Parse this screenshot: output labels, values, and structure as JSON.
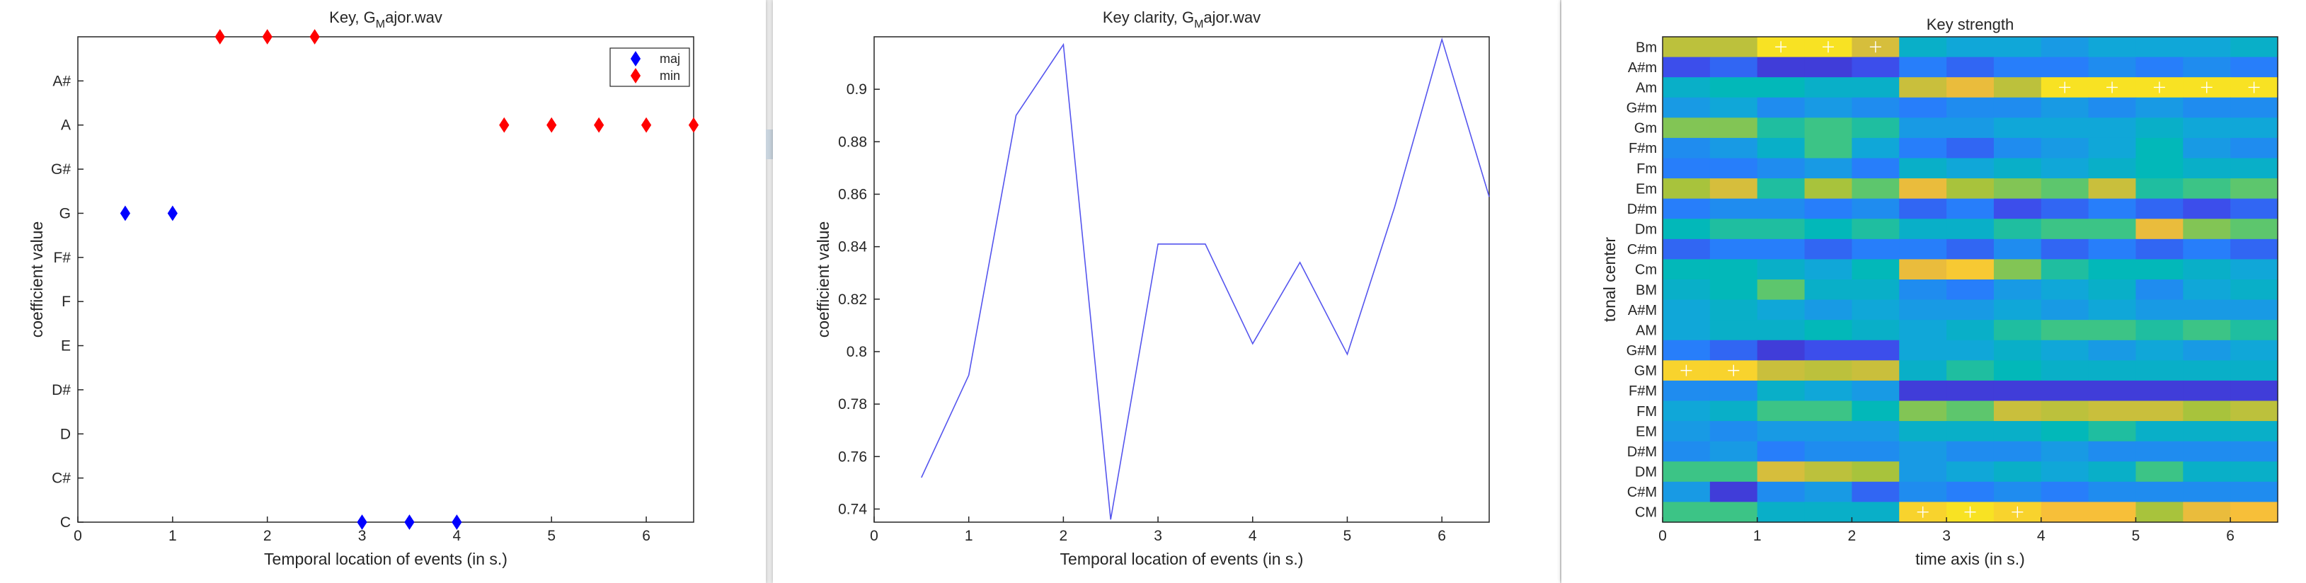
{
  "colors": {
    "major": "#0000ff",
    "minor": "#ff0000",
    "line": "#5555ee"
  },
  "chart_data": [
    {
      "id": "key",
      "type": "scatter",
      "title_main": "Key, G",
      "title_sub": "M",
      "title_rest": "ajor.wav",
      "xlabel": "Temporal location of events (in s.)",
      "ylabel": "coefficient value",
      "xlim": [
        0,
        6.5
      ],
      "xticks": [
        0,
        1,
        2,
        3,
        4,
        5,
        6
      ],
      "ycategories": [
        "C",
        "C#",
        "D",
        "D#",
        "E",
        "F",
        "F#",
        "G",
        "G#",
        "A",
        "A#",
        "B"
      ],
      "ytick_labels": [
        "C",
        "C#",
        "D",
        "D#",
        "E",
        "F",
        "F#",
        "G",
        "G#",
        "A",
        "A#"
      ],
      "legend": [
        {
          "name": "maj",
          "color": "#0000ff"
        },
        {
          "name": "min",
          "color": "#ff0000"
        }
      ],
      "legend_position": "top-right",
      "series": [
        {
          "name": "maj",
          "color": "#0000ff",
          "points": [
            [
              0.5,
              "G"
            ],
            [
              1,
              "G"
            ],
            [
              3,
              "C"
            ],
            [
              3.5,
              "C"
            ],
            [
              4,
              "C"
            ]
          ]
        },
        {
          "name": "min",
          "color": "#ff0000",
          "points": [
            [
              1.5,
              "B"
            ],
            [
              2,
              "B"
            ],
            [
              2.5,
              "B"
            ],
            [
              4.5,
              "A"
            ],
            [
              5,
              "A"
            ],
            [
              5.5,
              "A"
            ],
            [
              6,
              "A"
            ],
            [
              6.5,
              "A"
            ]
          ]
        }
      ]
    },
    {
      "id": "clarity",
      "type": "line",
      "title_main": "Key clarity, G",
      "title_sub": "M",
      "title_rest": "ajor.wav",
      "xlabel": "Temporal location of events (in s.)",
      "ylabel": "coefficient value",
      "xlim": [
        0,
        6.5
      ],
      "ylim": [
        0.735,
        0.92
      ],
      "xticks": [
        0,
        1,
        2,
        3,
        4,
        5,
        6
      ],
      "yticks": [
        0.74,
        0.76,
        0.78,
        0.8,
        0.82,
        0.84,
        0.86,
        0.88,
        0.9
      ],
      "x": [
        0.5,
        1,
        1.5,
        2,
        2.5,
        3,
        3.5,
        4,
        4.5,
        5,
        5.5,
        6,
        6.5
      ],
      "y": [
        0.752,
        0.791,
        0.89,
        0.917,
        0.736,
        0.841,
        0.841,
        0.803,
        0.834,
        0.799,
        0.855,
        0.919,
        0.859
      ]
    },
    {
      "id": "strength",
      "type": "heatmap",
      "title": "Key strength",
      "xlabel": "time axis (in s.)",
      "ylabel": "tonal center",
      "xlim": [
        0,
        6.5
      ],
      "xticks": [
        0,
        1,
        2,
        3,
        4,
        5,
        6
      ],
      "rows_top_to_bottom": [
        "Bm",
        "A#m",
        "Am",
        "G#m",
        "Gm",
        "F#m",
        "Fm",
        "Em",
        "D#m",
        "Dm",
        "C#m",
        "Cm",
        "BM",
        "A#M",
        "AM",
        "G#M",
        "GM",
        "F#M",
        "FM",
        "EM",
        "D#M",
        "DM",
        "C#M",
        "CM"
      ],
      "column_times": [
        0.25,
        0.75,
        1.25,
        1.75,
        2.25,
        2.75,
        3.25,
        3.75,
        4.25,
        4.75,
        5.25,
        5.75,
        6.25
      ],
      "values_top_to_bottom": [
        [
          0.78,
          0.78,
          0.95,
          0.95,
          0.82,
          0.45,
          0.4,
          0.4,
          0.35,
          0.4,
          0.4,
          0.4,
          0.45
        ],
        [
          0.15,
          0.2,
          0.1,
          0.1,
          0.15,
          0.25,
          0.2,
          0.25,
          0.25,
          0.3,
          0.25,
          0.3,
          0.25
        ],
        [
          0.45,
          0.5,
          0.5,
          0.45,
          0.45,
          0.8,
          0.85,
          0.78,
          0.95,
          0.95,
          0.95,
          0.95,
          0.95
        ],
        [
          0.35,
          0.4,
          0.3,
          0.35,
          0.3,
          0.25,
          0.3,
          0.3,
          0.35,
          0.3,
          0.35,
          0.3,
          0.3
        ],
        [
          0.7,
          0.7,
          0.55,
          0.6,
          0.55,
          0.35,
          0.35,
          0.4,
          0.4,
          0.4,
          0.45,
          0.4,
          0.4
        ],
        [
          0.3,
          0.35,
          0.45,
          0.6,
          0.4,
          0.25,
          0.2,
          0.3,
          0.35,
          0.4,
          0.5,
          0.35,
          0.3
        ],
        [
          0.25,
          0.25,
          0.3,
          0.35,
          0.25,
          0.45,
          0.4,
          0.45,
          0.4,
          0.45,
          0.5,
          0.45,
          0.45
        ],
        [
          0.75,
          0.82,
          0.55,
          0.75,
          0.65,
          0.85,
          0.75,
          0.7,
          0.65,
          0.8,
          0.55,
          0.6,
          0.65
        ],
        [
          0.25,
          0.3,
          0.3,
          0.25,
          0.3,
          0.2,
          0.25,
          0.15,
          0.2,
          0.25,
          0.2,
          0.15,
          0.2
        ],
        [
          0.5,
          0.55,
          0.55,
          0.5,
          0.55,
          0.45,
          0.45,
          0.55,
          0.6,
          0.6,
          0.85,
          0.7,
          0.65
        ],
        [
          0.2,
          0.25,
          0.25,
          0.2,
          0.25,
          0.25,
          0.2,
          0.3,
          0.2,
          0.25,
          0.2,
          0.25,
          0.2
        ],
        [
          0.5,
          0.5,
          0.45,
          0.4,
          0.5,
          0.85,
          0.9,
          0.7,
          0.55,
          0.5,
          0.5,
          0.45,
          0.4
        ],
        [
          0.45,
          0.5,
          0.65,
          0.45,
          0.45,
          0.3,
          0.25,
          0.35,
          0.4,
          0.45,
          0.3,
          0.4,
          0.45
        ],
        [
          0.4,
          0.45,
          0.4,
          0.35,
          0.4,
          0.35,
          0.35,
          0.4,
          0.35,
          0.4,
          0.35,
          0.35,
          0.35
        ],
        [
          0.4,
          0.45,
          0.45,
          0.5,
          0.45,
          0.4,
          0.45,
          0.55,
          0.6,
          0.6,
          0.55,
          0.6,
          0.55
        ],
        [
          0.25,
          0.2,
          0.1,
          0.15,
          0.15,
          0.4,
          0.4,
          0.45,
          0.4,
          0.35,
          0.4,
          0.35,
          0.4
        ],
        [
          0.92,
          0.92,
          0.8,
          0.78,
          0.8,
          0.45,
          0.55,
          0.5,
          0.45,
          0.45,
          0.45,
          0.45,
          0.45
        ],
        [
          0.3,
          0.3,
          0.45,
          0.4,
          0.35,
          0.1,
          0.1,
          0.1,
          0.1,
          0.1,
          0.1,
          0.1,
          0.1
        ],
        [
          0.4,
          0.45,
          0.6,
          0.6,
          0.5,
          0.7,
          0.65,
          0.8,
          0.78,
          0.8,
          0.8,
          0.75,
          0.78
        ],
        [
          0.35,
          0.3,
          0.35,
          0.35,
          0.35,
          0.45,
          0.45,
          0.45,
          0.5,
          0.55,
          0.45,
          0.45,
          0.45
        ],
        [
          0.3,
          0.35,
          0.25,
          0.3,
          0.3,
          0.35,
          0.3,
          0.3,
          0.35,
          0.3,
          0.3,
          0.3,
          0.3
        ],
        [
          0.6,
          0.6,
          0.82,
          0.78,
          0.75,
          0.35,
          0.4,
          0.45,
          0.4,
          0.45,
          0.6,
          0.45,
          0.45
        ],
        [
          0.35,
          0.1,
          0.3,
          0.35,
          0.2,
          0.3,
          0.25,
          0.3,
          0.25,
          0.3,
          0.3,
          0.3,
          0.3
        ],
        [
          0.6,
          0.6,
          0.45,
          0.45,
          0.45,
          0.92,
          0.95,
          0.92,
          0.88,
          0.88,
          0.75,
          0.85,
          0.88
        ]
      ],
      "max_markers": [
        [
          "Bm",
          1.25
        ],
        [
          "Bm",
          1.75
        ],
        [
          "Bm",
          2.25
        ],
        [
          "Am",
          4.25
        ],
        [
          "Am",
          4.75
        ],
        [
          "Am",
          5.25
        ],
        [
          "Am",
          5.75
        ],
        [
          "Am",
          6.25
        ],
        [
          "GM",
          0.25
        ],
        [
          "GM",
          0.75
        ],
        [
          "CM",
          2.75
        ],
        [
          "CM",
          3.25
        ],
        [
          "CM",
          3.75
        ]
      ]
    }
  ]
}
